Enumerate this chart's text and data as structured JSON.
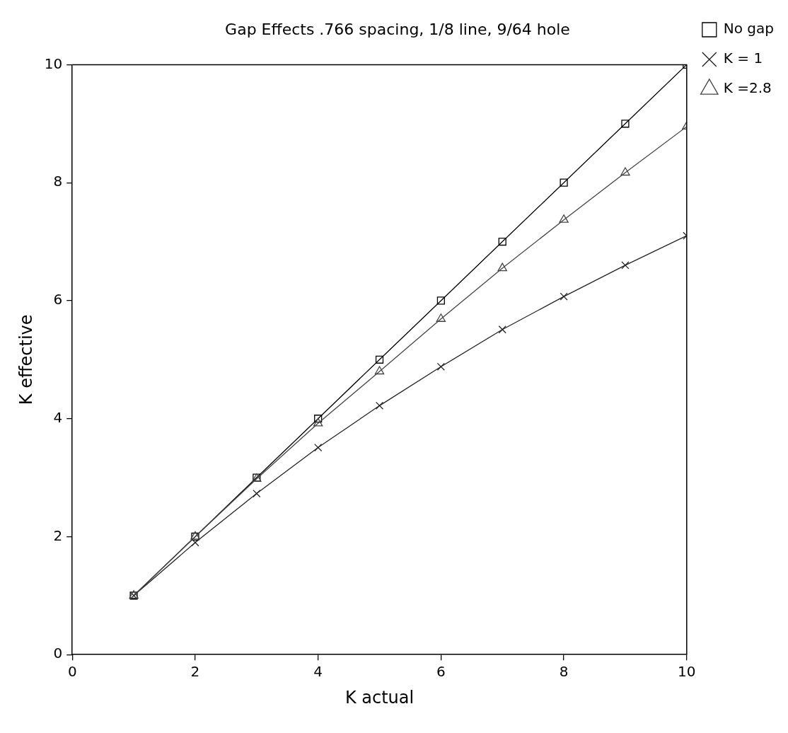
{
  "chart_data": {
    "type": "line",
    "title": "Gap Effects .766 spacing, 1/8 line, 9/64 hole",
    "xlabel": "K actual",
    "ylabel": "K effective",
    "x": [
      1,
      2,
      3,
      4,
      5,
      6,
      7,
      8,
      9,
      10
    ],
    "series": [
      {
        "name": "No gap",
        "color": "#000000",
        "marker": "square",
        "values": [
          1.0,
          2.0,
          3.0,
          4.0,
          5.0,
          6.0,
          7.0,
          8.0,
          9.0,
          10.0
        ]
      },
      {
        "name": "K = 1",
        "color": "#222222",
        "marker": "cross",
        "values": [
          1.0,
          1.9,
          2.73,
          3.51,
          4.22,
          4.88,
          5.51,
          6.07,
          6.6,
          7.1
        ]
      },
      {
        "name": "K =2.8",
        "color": "#444444",
        "marker": "triangle",
        "values": [
          1.0,
          2.0,
          2.98,
          3.92,
          4.8,
          5.69,
          6.55,
          7.37,
          8.17,
          8.95
        ]
      }
    ],
    "xlim": [
      0,
      10
    ],
    "ylim": [
      0,
      10
    ],
    "xticks": [
      0,
      2,
      4,
      6,
      8,
      10
    ],
    "yticks": [
      0,
      2,
      4,
      6,
      8,
      10
    ],
    "grid": false,
    "legend": "top right",
    "line_style": "solid"
  }
}
